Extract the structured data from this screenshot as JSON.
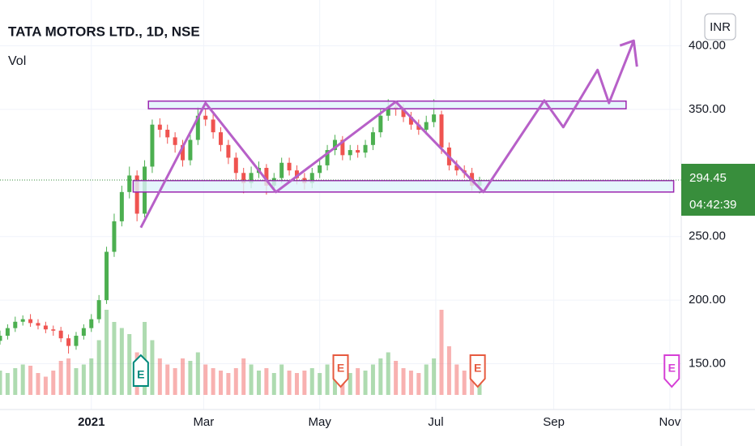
{
  "chart_data": {
    "type": "candlestick",
    "title": "TATA MOTORS LTD., 1D, NSE",
    "volume_label": "Vol",
    "currency": "INR",
    "x": [
      -48,
      -44,
      -40,
      -36,
      -32,
      -28,
      -24,
      -20,
      -16,
      -12,
      -8,
      -4,
      0,
      4,
      8,
      12,
      16,
      20,
      24,
      28,
      32,
      36,
      40,
      44,
      48,
      52,
      56,
      60,
      64,
      68,
      72,
      76,
      80,
      84,
      88,
      92,
      96,
      100,
      104,
      108,
      112,
      116,
      120,
      124,
      128,
      132,
      136,
      140,
      144,
      148,
      152,
      156,
      160,
      164,
      168,
      172,
      176,
      180,
      184,
      188,
      192,
      196,
      200,
      204
    ],
    "open": [
      168,
      172,
      178,
      183,
      185,
      182,
      180,
      177,
      176,
      170,
      164,
      172,
      178,
      185,
      200,
      238,
      262,
      285,
      298,
      268,
      305,
      338,
      334,
      328,
      322,
      310,
      326,
      345,
      342,
      332,
      322,
      312,
      300,
      292,
      300,
      304,
      290,
      296,
      308,
      302,
      296,
      292,
      300,
      306,
      318,
      326,
      314,
      318,
      316,
      322,
      332,
      345,
      352,
      350,
      344,
      338,
      334,
      340,
      346,
      320,
      306,
      302,
      300,
      290
    ],
    "high": [
      176,
      181,
      187,
      188,
      189,
      185,
      183,
      180,
      179,
      173,
      175,
      181,
      189,
      204,
      242,
      268,
      290,
      305,
      302,
      310,
      342,
      343,
      338,
      332,
      326,
      330,
      352,
      350,
      346,
      336,
      326,
      316,
      304,
      305,
      309,
      307,
      300,
      312,
      312,
      306,
      300,
      304,
      310,
      322,
      330,
      329,
      322,
      322,
      326,
      336,
      350,
      358,
      356,
      354,
      348,
      342,
      345,
      358,
      349,
      324,
      310,
      306,
      304,
      297
    ],
    "low": [
      165,
      169,
      175,
      180,
      179,
      177,
      174,
      172,
      167,
      158,
      161,
      169,
      175,
      182,
      197,
      234,
      258,
      280,
      262,
      265,
      300,
      328,
      323,
      316,
      305,
      306,
      322,
      337,
      327,
      317,
      307,
      295,
      284,
      288,
      296,
      283,
      286,
      292,
      298,
      291,
      287,
      288,
      296,
      302,
      314,
      310,
      310,
      312,
      312,
      318,
      328,
      341,
      345,
      340,
      334,
      330,
      330,
      336,
      315,
      302,
      298,
      296,
      286,
      284
    ],
    "close": [
      172,
      178,
      183,
      185,
      182,
      180,
      177,
      176,
      170,
      164,
      172,
      178,
      185,
      200,
      238,
      262,
      285,
      298,
      268,
      305,
      338,
      334,
      328,
      322,
      310,
      326,
      345,
      342,
      332,
      322,
      312,
      300,
      292,
      300,
      304,
      290,
      296,
      308,
      302,
      296,
      292,
      300,
      306,
      318,
      326,
      314,
      318,
      316,
      322,
      332,
      345,
      352,
      350,
      344,
      338,
      334,
      340,
      346,
      320,
      306,
      302,
      300,
      290,
      294.45
    ],
    "volume": [
      20,
      18,
      22,
      25,
      24,
      18,
      15,
      20,
      28,
      30,
      22,
      25,
      30,
      45,
      70,
      60,
      55,
      50,
      35,
      60,
      45,
      30,
      25,
      22,
      30,
      28,
      35,
      25,
      22,
      20,
      18,
      22,
      30,
      25,
      20,
      22,
      18,
      25,
      20,
      18,
      20,
      22,
      18,
      25,
      28,
      20,
      18,
      22,
      20,
      25,
      30,
      35,
      28,
      22,
      20,
      18,
      25,
      30,
      70,
      40,
      25,
      20,
      22,
      18
    ],
    "up_color": "#4caf50",
    "down_color": "#ef5350",
    "xlim": [
      -48,
      310
    ],
    "xticks": [
      {
        "value": 0,
        "label": "2021"
      },
      {
        "value": 59,
        "label": "Mar"
      },
      {
        "value": 120,
        "label": "May"
      },
      {
        "value": 181,
        "label": "Jul"
      },
      {
        "value": 243,
        "label": "Sep"
      },
      {
        "value": 304,
        "label": "Nov"
      }
    ],
    "ylim": [
      114,
      436
    ],
    "yticks": [
      {
        "value": 400,
        "label": "400.00"
      },
      {
        "value": 350,
        "label": "350.00"
      },
      {
        "value": 250,
        "label": "250.00"
      },
      {
        "value": 200,
        "label": "200.00"
      },
      {
        "value": 150,
        "label": "150.00"
      }
    ],
    "grid": true,
    "last_price": {
      "value": 294.45,
      "countdown": "04:42:39",
      "color": "#388e3c"
    },
    "zones": [
      {
        "x": [
          30,
          281
        ],
        "y": [
          350.5,
          356.5
        ]
      },
      {
        "x": [
          22,
          306
        ],
        "y": [
          285,
          294
        ]
      }
    ],
    "zone_color": "#9c27b0",
    "path": {
      "x": [
        26,
        60,
        97,
        160,
        206,
        238,
        248,
        266,
        272,
        285
      ],
      "y": [
        257,
        355,
        285,
        356,
        285,
        357,
        336,
        381,
        355,
        404
      ],
      "color": "#b760c8"
    },
    "earnings": [
      {
        "x": 26,
        "label": "E",
        "color": "#00897b"
      },
      {
        "x": 131,
        "label": "E",
        "color": "#e65a3f"
      },
      {
        "x": 203,
        "label": "E",
        "color": "#e65a3f"
      },
      {
        "x": 305,
        "label": "E",
        "color": "#d63fd6"
      }
    ]
  }
}
